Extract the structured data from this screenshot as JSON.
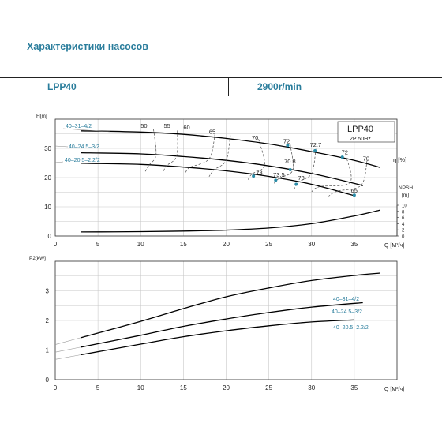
{
  "header": {
    "title": "Характеристики насосов",
    "model": "LPP40",
    "speed": "2900r/min"
  },
  "colors": {
    "accent": "#2a7d9c",
    "grid": "#c8c8c8",
    "curve": "#000000",
    "efficiency": "#4a4a4a",
    "marker": "#2a8ca8"
  },
  "chart_data": [
    {
      "type": "line",
      "title": "",
      "legend_box": {
        "model": "LPP40",
        "spec": "2P  50Hz"
      },
      "xlabel": "Q [М³/ч]",
      "ylabel": "H[m]",
      "y2label": "NPSH [m]",
      "eta_label": "η [%]",
      "xlim": [
        0,
        40
      ],
      "ylim": [
        0,
        40
      ],
      "y2lim": [
        0,
        10
      ],
      "xticks": [
        0,
        5,
        10,
        15,
        20,
        25,
        30,
        35
      ],
      "yticks": [
        0,
        10,
        20,
        30
      ],
      "y2ticks": [
        0,
        2,
        4,
        6,
        8,
        10
      ],
      "grid": true,
      "series": [
        {
          "name": "40–31–4/2",
          "x": [
            3,
            10,
            15,
            20,
            25,
            30,
            35,
            38
          ],
          "y": [
            36,
            35.6,
            34.8,
            33.4,
            31.5,
            28.9,
            25.9,
            23.5
          ]
        },
        {
          "name": "40–24.5–3/2",
          "x": [
            3,
            10,
            15,
            20,
            25,
            30,
            35,
            36
          ],
          "y": [
            28.5,
            28.1,
            27.2,
            25.9,
            24.0,
            21.4,
            18.0,
            17.2
          ]
        },
        {
          "name": "40–20.5–2.2/2",
          "x": [
            3,
            10,
            15,
            20,
            25,
            30,
            35
          ],
          "y": [
            24.9,
            24.5,
            23.6,
            22.3,
            20.4,
            17.7,
            13.8
          ]
        },
        {
          "name": "NPSH",
          "axis": "y2",
          "x": [
            3,
            10,
            15,
            20,
            25,
            30,
            35,
            38
          ],
          "y": [
            1.3,
            1.4,
            1.6,
            1.9,
            2.6,
            4.0,
            6.5,
            8.4
          ]
        }
      ],
      "efficiency_lines": [
        {
          "label": "50",
          "x": [
            11.5,
            11.8,
            11.0,
            10.5
          ]
        },
        {
          "label": "55",
          "x": [
            14.3,
            14.2,
            13.0,
            12.6
          ]
        },
        {
          "label": "60",
          "x": [
            18.7,
            18.0,
            15.7,
            15.2
          ]
        },
        {
          "label": "65",
          "x": [
            20.5,
            20.0,
            18.6,
            18.0
          ]
        },
        {
          "label": "70",
          "x": [
            23.8,
            24.5,
            23.0,
            22.5
          ]
        },
        {
          "label": "72",
          "x": [
            27.5,
            27.8,
            26.2,
            25.5
          ]
        },
        {
          "label": "72.7",
          "x": [
            30.5,
            30.0,
            28.5,
            28.0
          ]
        },
        {
          "label": "72",
          "x": [
            34.0,
            34.5,
            31.0,
            30.0
          ]
        },
        {
          "label": "70",
          "x": [
            36.5,
            35.8,
            33.0,
            32.0
          ]
        }
      ],
      "point_labels": [
        {
          "text": "50",
          "x": 10.0,
          "y": 37.0
        },
        {
          "text": "55",
          "x": 12.7,
          "y": 37.0
        },
        {
          "text": "60",
          "x": 15.0,
          "y": 36.5
        },
        {
          "text": "65",
          "x": 18.0,
          "y": 35.0
        },
        {
          "text": "70",
          "x": 23.0,
          "y": 33.0
        },
        {
          "text": "72",
          "x": 26.7,
          "y": 31.8
        },
        {
          "text": "72.7",
          "x": 29.8,
          "y": 30.6
        },
        {
          "text": "72",
          "x": 33.5,
          "y": 28.0
        },
        {
          "text": "70",
          "x": 36.0,
          "y": 25.8
        },
        {
          "text": "70.8",
          "x": 26.8,
          "y": 24.8
        },
        {
          "text": "73",
          "x": 23.5,
          "y": 21.0
        },
        {
          "text": "73.5",
          "x": 25.5,
          "y": 20.3
        },
        {
          "text": "73",
          "x": 28.4,
          "y": 19.2
        },
        {
          "text": "65",
          "x": 34.6,
          "y": 14.8
        }
      ],
      "markers": [
        {
          "x": 27.2,
          "y": 31.0
        },
        {
          "x": 30.4,
          "y": 29.2
        },
        {
          "x": 33.6,
          "y": 27.0
        },
        {
          "x": 27.5,
          "y": 22.7
        },
        {
          "x": 23.2,
          "y": 20.5
        },
        {
          "x": 25.8,
          "y": 19.1
        },
        {
          "x": 28.2,
          "y": 17.7
        },
        {
          "x": 35.0,
          "y": 14.0
        }
      ]
    },
    {
      "type": "line",
      "title": "",
      "xlabel": "Q [М³/ч]",
      "ylabel": "P2[kW]",
      "xlim": [
        0,
        40
      ],
      "ylim": [
        0,
        4
      ],
      "xticks": [
        0,
        5,
        10,
        15,
        20,
        25,
        30,
        35
      ],
      "yticks": [
        0,
        1,
        2,
        3
      ],
      "grid": true,
      "series": [
        {
          "name": "40–31–4/2",
          "x": [
            3,
            10,
            15,
            20,
            25,
            30,
            35,
            38
          ],
          "y": [
            1.42,
            1.97,
            2.4,
            2.8,
            3.1,
            3.35,
            3.52,
            3.6
          ]
        },
        {
          "name": "40–24.5–3/2",
          "x": [
            3,
            10,
            15,
            20,
            25,
            30,
            36
          ],
          "y": [
            1.1,
            1.5,
            1.8,
            2.05,
            2.27,
            2.45,
            2.6
          ]
        },
        {
          "name": "40–20.5–2.2/2",
          "x": [
            3,
            10,
            15,
            20,
            25,
            30,
            35
          ],
          "y": [
            0.84,
            1.2,
            1.45,
            1.65,
            1.82,
            1.95,
            2.02
          ]
        }
      ]
    }
  ]
}
